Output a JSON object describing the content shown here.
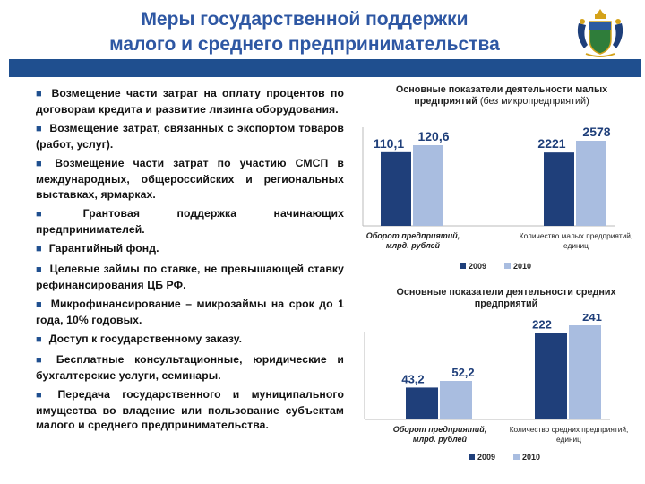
{
  "header": {
    "title_line1": "Меры государственной поддержки",
    "title_line2": "малого и среднего предпринимательства"
  },
  "measures": [
    "Возмещение части затрат на оплату процентов по договорам кредита и развитие лизинга оборудования.",
    "Возмещение затрат, связанных с экспортом товаров (работ, услуг).",
    "Возмещение части затрат по участию СМСП в международных, общероссийских и региональных выставках, ярмарках.",
    "Грантовая поддержка начинающих предпринимателей.",
    "Гарантийный фонд.",
    "Целевые займы по ставке, не превышающей ставку рефинансирования ЦБ РФ.",
    "Микрофинансирование – микрозаймы на срок до 1 года, 10% годовых.",
    "Доступ к государственному заказу.",
    "Бесплатные консультационные, юридические и бухгалтерские услуги, семинары.",
    "Передача государственного и муниципального имущества во владение или пользование субъектам малого и среднего предпринимательства."
  ],
  "colors": {
    "title": "#2e57a3",
    "band": "#1f4f8f",
    "series_2009": "#1f3f7a",
    "series_2010": "#a9bde0"
  },
  "chart_data": [
    {
      "type": "bar",
      "title": "Основные показатели деятельности малых предприятий",
      "subtitle": "(без микропредприятий)",
      "categories": [
        "Оборот предприятий, млрд. рублей",
        "Количество малых предприятий, единиц"
      ],
      "series": [
        {
          "name": "2009",
          "values": [
            110.1,
            2221
          ],
          "labels": [
            "110,1",
            "2221"
          ]
        },
        {
          "name": "2010",
          "values": [
            120.6,
            2578
          ],
          "labels": [
            "120,6",
            "2578"
          ]
        }
      ],
      "legend": "bottom"
    },
    {
      "type": "bar",
      "title": "Основные показатели деятельности средних предприятий",
      "subtitle": "",
      "categories": [
        "Оборот предприятий, млрд. рублей",
        "Количество средних предприятий, единиц"
      ],
      "series": [
        {
          "name": "2009",
          "values": [
            43.2,
            222
          ],
          "labels": [
            "43,2",
            "222"
          ]
        },
        {
          "name": "2010",
          "values": [
            52.2,
            241
          ],
          "labels": [
            "52,2",
            "241"
          ]
        }
      ],
      "legend": "bottom"
    }
  ]
}
